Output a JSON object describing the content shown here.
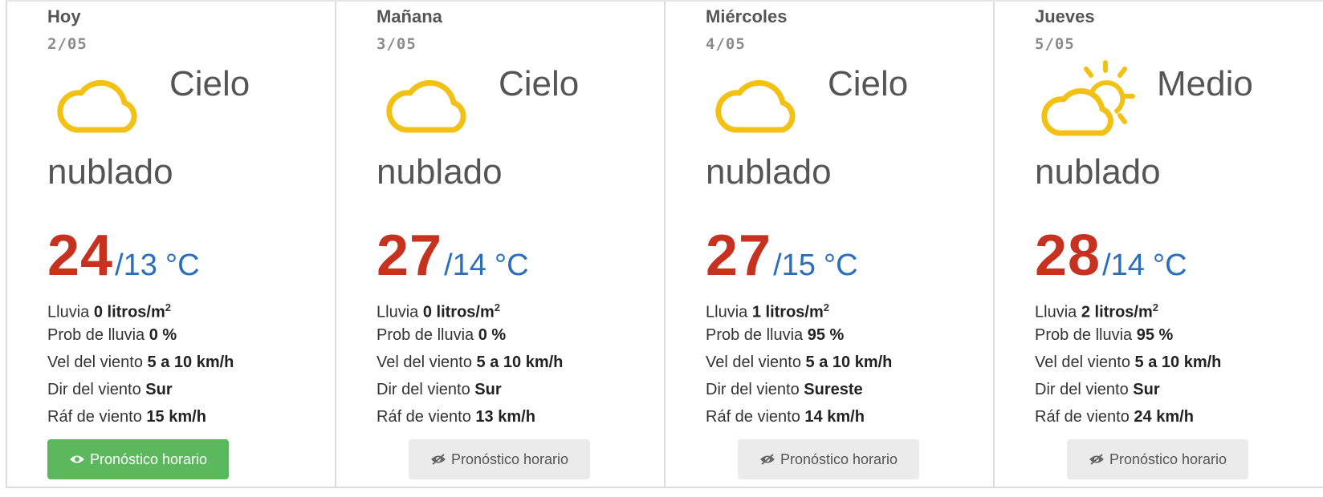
{
  "button_label": "Pronóstico horario",
  "colors": {
    "max_temp": "#c7311f",
    "min_temp": "#2a6ebd",
    "icon": "#f2c114",
    "primary_button": "#5cb85c",
    "secondary_button": "#ebebeb"
  },
  "days": [
    {
      "name": "Hoy",
      "date": "2/05",
      "icon": "cloud-icon",
      "sky_line1": "Cielo",
      "sky_line2": "nublado",
      "max": "24",
      "min": "/13",
      "unit": "°C",
      "rain_label": "Lluvia",
      "rain_value": "0 litros/m",
      "rain_sup": "2",
      "prob_label": "Prob de lluvia",
      "prob_value": "0 %",
      "wind_speed_label": "Vel del viento",
      "wind_speed_value": "5 a 10 km/h",
      "wind_dir_label": "Dir del viento",
      "wind_dir_value": "Sur",
      "gust_label": "Ráf de viento",
      "gust_value": "15 km/h",
      "button_active": true
    },
    {
      "name": "Mañana",
      "date": "3/05",
      "icon": "cloud-icon",
      "sky_line1": "Cielo",
      "sky_line2": "nublado",
      "max": "27",
      "min": "/14",
      "unit": "°C",
      "rain_label": "Lluvia",
      "rain_value": "0 litros/m",
      "rain_sup": "2",
      "prob_label": "Prob de lluvia",
      "prob_value": "0 %",
      "wind_speed_label": "Vel del viento",
      "wind_speed_value": "5 a 10 km/h",
      "wind_dir_label": "Dir del viento",
      "wind_dir_value": "Sur",
      "gust_label": "Ráf de viento",
      "gust_value": "13 km/h",
      "button_active": false
    },
    {
      "name": "Miércoles",
      "date": "4/05",
      "icon": "cloud-icon",
      "sky_line1": "Cielo",
      "sky_line2": "nublado",
      "max": "27",
      "min": "/15",
      "unit": "°C",
      "rain_label": "Lluvia",
      "rain_value": "1 litros/m",
      "rain_sup": "2",
      "prob_label": "Prob de lluvia",
      "prob_value": "95 %",
      "wind_speed_label": "Vel del viento",
      "wind_speed_value": "5 a 10 km/h",
      "wind_dir_label": "Dir del viento",
      "wind_dir_value": "Sureste",
      "gust_label": "Ráf de viento",
      "gust_value": "14 km/h",
      "button_active": false
    },
    {
      "name": "Jueves",
      "date": "5/05",
      "icon": "partly-cloudy-icon",
      "sky_line1": "Medio",
      "sky_line2": "nublado",
      "max": "28",
      "min": "/14",
      "unit": "°C",
      "rain_label": "Lluvia",
      "rain_value": "2 litros/m",
      "rain_sup": "2",
      "prob_label": "Prob de lluvia",
      "prob_value": "95 %",
      "wind_speed_label": "Vel del viento",
      "wind_speed_value": "5 a 10 km/h",
      "wind_dir_label": "Dir del viento",
      "wind_dir_value": "Sur",
      "gust_label": "Ráf de viento",
      "gust_value": "24 km/h",
      "button_active": false
    }
  ]
}
